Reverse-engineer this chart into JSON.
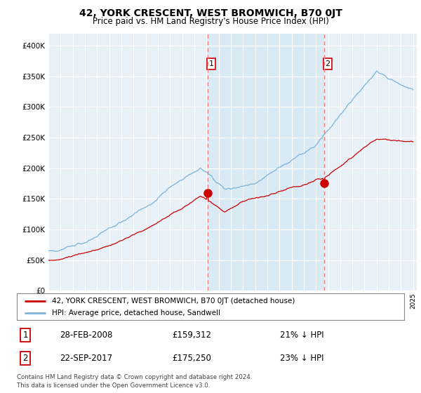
{
  "title": "42, YORK CRESCENT, WEST BROMWICH, B70 0JT",
  "subtitle": "Price paid vs. HM Land Registry's House Price Index (HPI)",
  "legend_line1": "42, YORK CRESCENT, WEST BROMWICH, B70 0JT (detached house)",
  "legend_line2": "HPI: Average price, detached house, Sandwell",
  "transaction1_date": "28-FEB-2008",
  "transaction1_price": "£159,312",
  "transaction1_hpi": "21% ↓ HPI",
  "transaction2_date": "22-SEP-2017",
  "transaction2_price": "£175,250",
  "transaction2_hpi": "23% ↓ HPI",
  "footer": "Contains HM Land Registry data © Crown copyright and database right 2024.\nThis data is licensed under the Open Government Licence v3.0.",
  "hpi_color": "#7ab4d8",
  "price_color": "#cc0000",
  "dashed_color": "#f08080",
  "shade_color": "#d8eaf5",
  "background_chart": "#e8f0f8",
  "grid_color": "#ffffff",
  "ylim": [
    0,
    420000
  ],
  "yticks": [
    0,
    50000,
    100000,
    150000,
    200000,
    250000,
    300000,
    350000,
    400000
  ],
  "t1_year": 2008.083,
  "t2_year": 2017.667
}
